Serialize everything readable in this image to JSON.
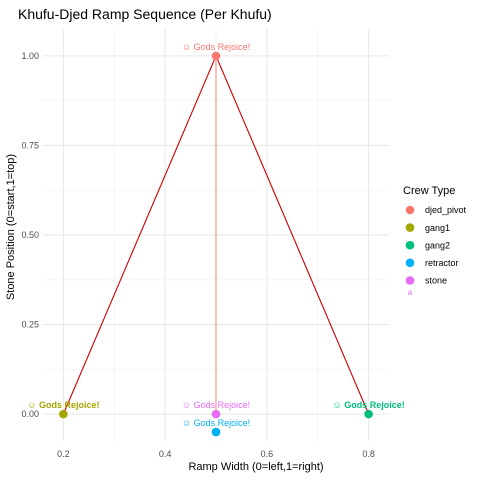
{
  "chart_data": {
    "type": "scatter",
    "title": "Khufu-Djed Ramp Sequence (Per Khufu)",
    "xlabel": "Ramp Width (0=left,1=right)",
    "ylabel": "Stone Position (0=start,1=top)",
    "xlim": [
      0.16,
      0.84
    ],
    "ylim": [
      -0.075,
      1.075
    ],
    "x_ticks": [
      0.2,
      0.4,
      0.6,
      0.8
    ],
    "y_ticks": [
      0.0,
      0.25,
      0.5,
      0.75,
      1.0
    ],
    "x_tick_labels": [
      "0.2",
      "0.4",
      "0.6",
      "0.8"
    ],
    "y_tick_labels": [
      "0.00",
      "0.25",
      "0.50",
      "0.75",
      "1.00"
    ],
    "grid": true,
    "legend": {
      "title": "Crew Type",
      "placement": "right",
      "items": [
        {
          "name": "djed_pivot",
          "color": "#F8766D"
        },
        {
          "name": "gang1",
          "color": "#A3A500"
        },
        {
          "name": "gang2",
          "color": "#00BF7D"
        },
        {
          "name": "retractor",
          "color": "#00B0F6"
        },
        {
          "name": "stone",
          "color": "#E76BF3"
        }
      ],
      "extra_key_glyph": "a"
    },
    "points": [
      {
        "crew": "djed_pivot",
        "x": 0.5,
        "y": 1.0
      },
      {
        "crew": "gang1",
        "x": 0.2,
        "y": 0.0
      },
      {
        "crew": "gang2",
        "x": 0.8,
        "y": 0.0
      },
      {
        "crew": "retractor",
        "x": 0.5,
        "y": -0.05
      },
      {
        "crew": "stone",
        "x": 0.5,
        "y": 0.0
      }
    ],
    "path_lines": [
      {
        "color": "#CC0000",
        "points": [
          [
            0.2,
            0.0
          ],
          [
            0.5,
            1.0
          ],
          [
            0.8,
            0.0
          ]
        ]
      },
      {
        "color": "#F8766D",
        "points": [
          [
            0.5,
            1.0
          ],
          [
            0.5,
            0.0
          ]
        ]
      }
    ],
    "annotations": [
      {
        "text": "☺ Gods Rejoice!",
        "x": 0.5,
        "y": 1.025,
        "color": "#F8766D",
        "bold": false,
        "anchor": "middle"
      },
      {
        "text": "☺ Gods Rejoice!",
        "x": 0.2,
        "y": 0.025,
        "color": "#A3A500",
        "bold": true,
        "anchor": "middle"
      },
      {
        "text": "☺ Gods Rejoice!",
        "x": 0.8,
        "y": 0.025,
        "color": "#00BF7D",
        "bold": true,
        "anchor": "middle"
      },
      {
        "text": "☺ Gods Rejoice!",
        "x": 0.5,
        "y": 0.025,
        "color": "#E76BF3",
        "bold": false,
        "anchor": "middle"
      },
      {
        "text": "☺ Gods Rejoice!",
        "x": 0.5,
        "y": -0.025,
        "color": "#00B0F6",
        "bold": false,
        "anchor": "middle"
      }
    ]
  }
}
